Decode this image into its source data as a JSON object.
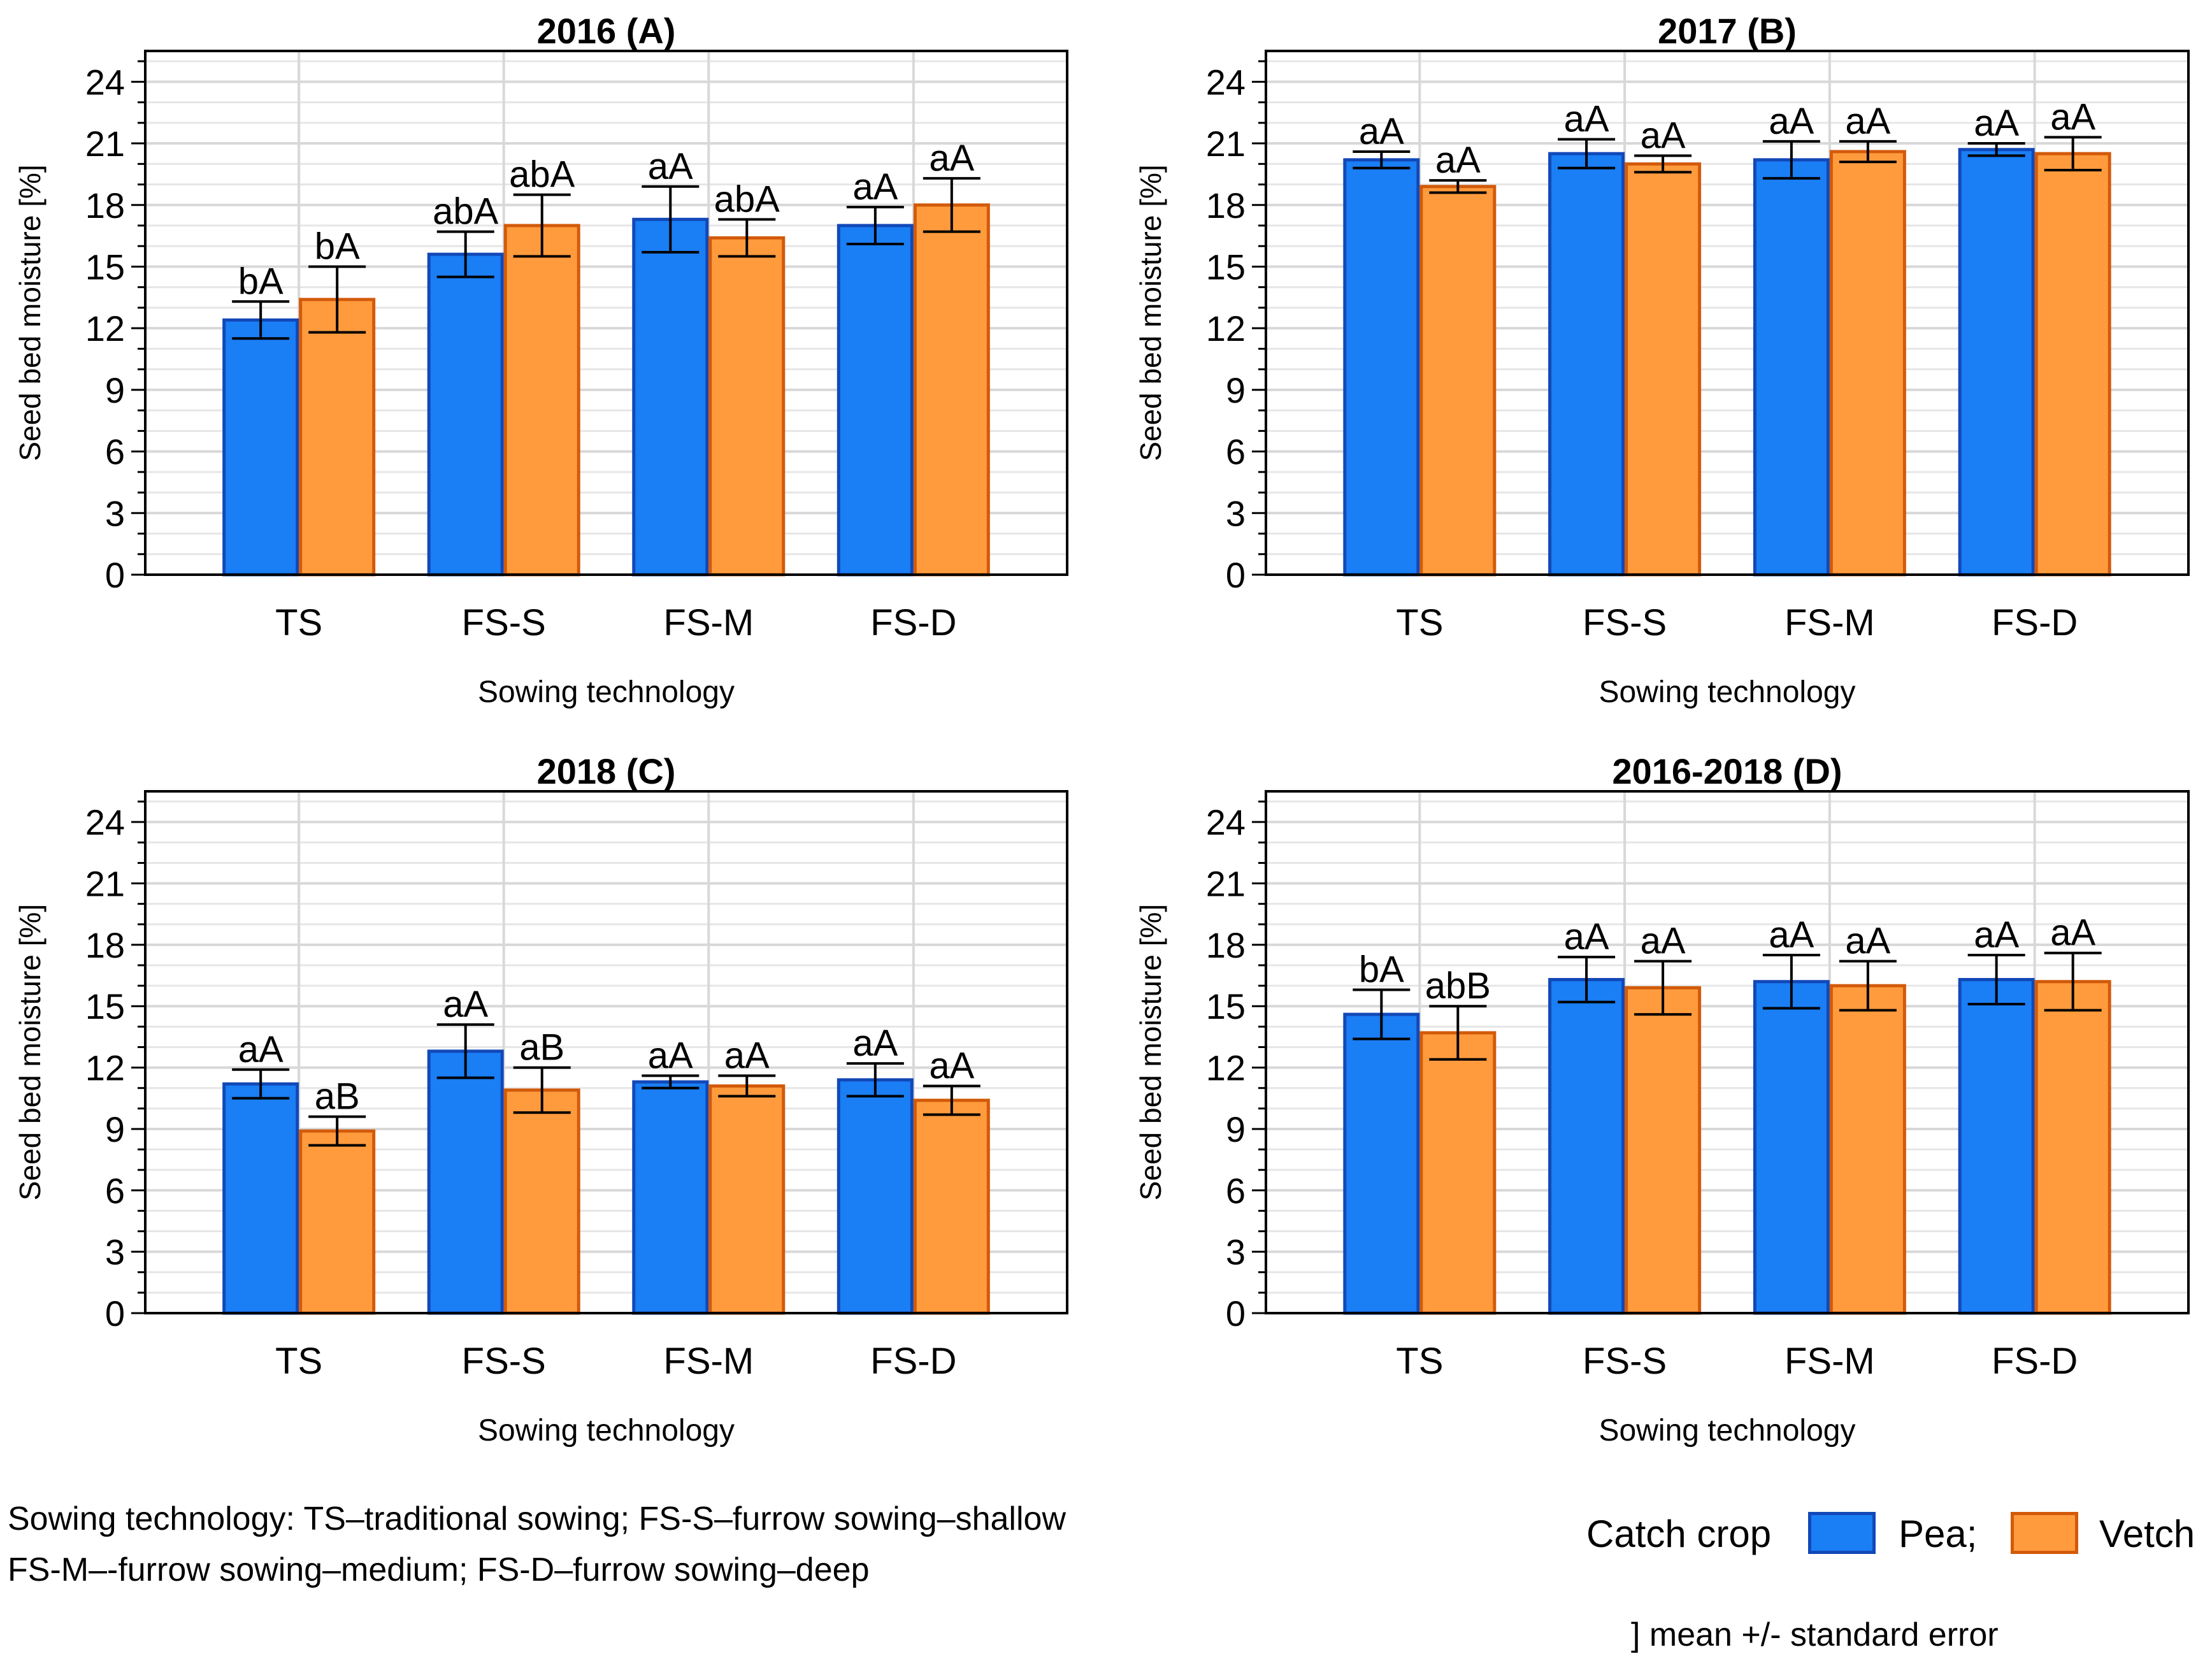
{
  "colors": {
    "pea": "#1a7ef5",
    "pea_border": "#1248b8",
    "vetch": "#ff9b3d",
    "vetch_border": "#d25a0a",
    "grid": "#d8d8d8"
  },
  "chart_data": [
    {
      "type": "bar",
      "title": "2016 (A)",
      "xlabel": "Sowing technology",
      "ylabel": "Seed bed moisture [%]",
      "ylim": [
        0,
        25.5
      ],
      "yticks": [
        0,
        3,
        6,
        9,
        12,
        15,
        18,
        21,
        24
      ],
      "grid": true,
      "categories": [
        "TS",
        "FS-S",
        "FS-M",
        "FS-D"
      ],
      "series": [
        {
          "name": "Pea",
          "values": [
            12.4,
            15.6,
            17.3,
            17.0
          ],
          "se": [
            0.9,
            1.1,
            1.6,
            0.9
          ],
          "labels": [
            "bA",
            "abA",
            "aA",
            "aA"
          ]
        },
        {
          "name": "Vetch",
          "values": [
            13.4,
            17.0,
            16.4,
            18.0
          ],
          "se": [
            1.6,
            1.5,
            0.9,
            1.3
          ],
          "labels": [
            "bA",
            "abA",
            "abA",
            "aA"
          ]
        }
      ]
    },
    {
      "type": "bar",
      "title": "2017 (B)",
      "xlabel": "Sowing technology",
      "ylabel": "Seed bed moisture [%]",
      "ylim": [
        0,
        25.5
      ],
      "yticks": [
        0,
        3,
        6,
        9,
        12,
        15,
        18,
        21,
        24
      ],
      "grid": true,
      "categories": [
        "TS",
        "FS-S",
        "FS-M",
        "FS-D"
      ],
      "series": [
        {
          "name": "Pea",
          "values": [
            20.2,
            20.5,
            20.2,
            20.7
          ],
          "se": [
            0.4,
            0.7,
            0.9,
            0.3
          ],
          "labels": [
            "aA",
            "aA",
            "aA",
            "aA"
          ]
        },
        {
          "name": "Vetch",
          "values": [
            18.9,
            20.0,
            20.6,
            20.5
          ],
          "se": [
            0.3,
            0.4,
            0.5,
            0.8
          ],
          "labels": [
            "aA",
            "aA",
            "aA",
            "aA"
          ]
        }
      ]
    },
    {
      "type": "bar",
      "title": "2018 (C)",
      "xlabel": "Sowing technology",
      "ylabel": "Seed bed moisture [%]",
      "ylim": [
        0,
        25.5
      ],
      "yticks": [
        0,
        3,
        6,
        9,
        12,
        15,
        18,
        21,
        24
      ],
      "grid": true,
      "categories": [
        "TS",
        "FS-S",
        "FS-M",
        "FS-D"
      ],
      "series": [
        {
          "name": "Pea",
          "values": [
            11.2,
            12.8,
            11.3,
            11.4
          ],
          "se": [
            0.7,
            1.3,
            0.3,
            0.8
          ],
          "labels": [
            "aA",
            "aA",
            "aA",
            "aA"
          ]
        },
        {
          "name": "Vetch",
          "values": [
            8.9,
            10.9,
            11.1,
            10.4
          ],
          "se": [
            0.7,
            1.1,
            0.5,
            0.7
          ],
          "labels": [
            "aB",
            "aB",
            "aA",
            "aA"
          ]
        }
      ]
    },
    {
      "type": "bar",
      "title": "2016-2018 (D)",
      "xlabel": "Sowing technology",
      "ylabel": "Seed bed moisture [%]",
      "ylim": [
        0,
        25.5
      ],
      "yticks": [
        0,
        3,
        6,
        9,
        12,
        15,
        18,
        21,
        24
      ],
      "grid": true,
      "categories": [
        "TS",
        "FS-S",
        "FS-M",
        "FS-D"
      ],
      "series": [
        {
          "name": "Pea",
          "values": [
            14.6,
            16.3,
            16.2,
            16.3
          ],
          "se": [
            1.2,
            1.1,
            1.3,
            1.2
          ],
          "labels": [
            "bA",
            "aA",
            "aA",
            "aA"
          ]
        },
        {
          "name": "Vetch",
          "values": [
            13.7,
            15.9,
            16.0,
            16.2
          ],
          "se": [
            1.3,
            1.3,
            1.2,
            1.4
          ],
          "labels": [
            "abB",
            "aA",
            "aA",
            "aA"
          ]
        }
      ]
    }
  ],
  "footnote": {
    "line1": "Sowing technology: TS–traditional sowing; FS-S–furrow sowing–shallow",
    "line2": "FS-M–-furrow sowing–medium; FS-D–furrow sowing–deep"
  },
  "legend": {
    "title": "Catch crop",
    "pea_label": "Pea;",
    "vetch_label": "Vetch"
  },
  "error_note": "] mean +/- standard error"
}
